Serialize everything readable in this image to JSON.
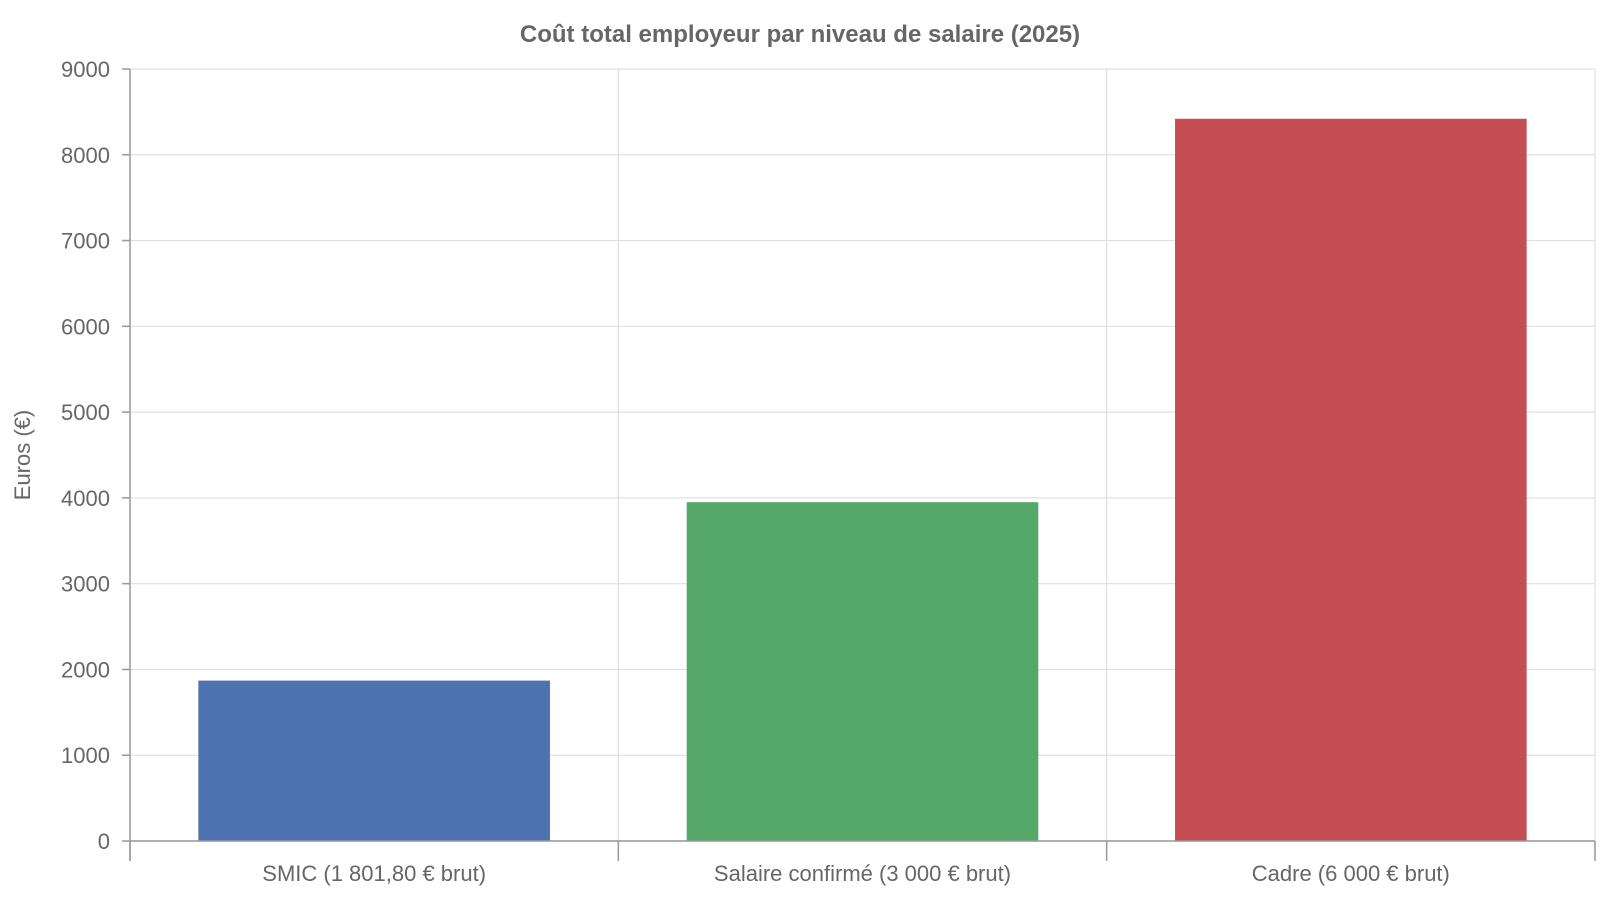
{
  "chart_data": {
    "type": "bar",
    "title": "Coût total employeur par niveau de salaire (2025)",
    "xlabel": "",
    "ylabel": "Euros (€)",
    "categories": [
      "SMIC (1 801,80 € brut)",
      "Salaire confirmé (3 000 € brut)",
      "Cadre (6 000 € brut)"
    ],
    "values": [
      1870,
      3950,
      8420
    ],
    "colors": [
      "#4c72b0",
      "#55a868",
      "#c44e52"
    ],
    "ylim": [
      0,
      9000
    ],
    "yticks": [
      0,
      1000,
      2000,
      3000,
      4000,
      5000,
      6000,
      7000,
      8000,
      9000
    ],
    "grid": true,
    "legend": "none"
  }
}
